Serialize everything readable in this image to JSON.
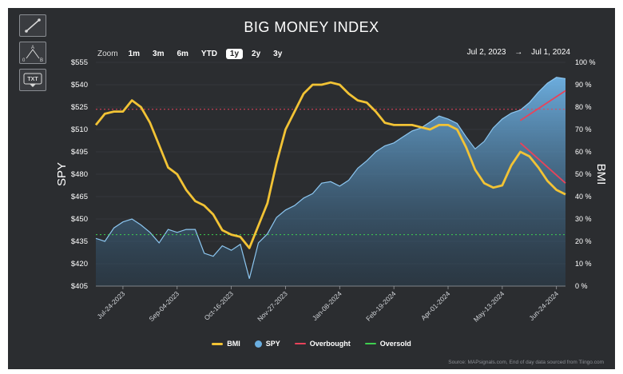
{
  "title": "BIG MONEY INDEX",
  "tools": [
    {
      "name": "trendline-tool-icon"
    },
    {
      "name": "measure-tool-icon",
      "labels": [
        "A",
        "0",
        "B"
      ]
    },
    {
      "name": "text-tool-icon",
      "label": "TXT"
    }
  ],
  "zoom": {
    "label": "Zoom",
    "buttons": [
      "1m",
      "3m",
      "6m",
      "YTD",
      "1y",
      "2y",
      "3y"
    ],
    "active": "1y"
  },
  "range": {
    "from": "Jul 2, 2023",
    "arrow": "→",
    "to": "Jul 1, 2024"
  },
  "legend": [
    {
      "label": "BMI",
      "color": "#f2c335",
      "shape": "line"
    },
    {
      "label": "SPY",
      "color": "#6aaee0",
      "shape": "dot"
    },
    {
      "label": "Overbought",
      "color": "#e8435a",
      "shape": "line"
    },
    {
      "label": "Oversold",
      "color": "#3ecf4f",
      "shape": "line"
    }
  ],
  "source": "Source: MAPsignals.com, End of day data sourced from Tiingo.com",
  "chart_data": {
    "type": "line",
    "title": "BIG MONEY INDEX",
    "x_tick_labels": [
      "Jul-24-2023",
      "Sep-04-2023",
      "Oct-16-2023",
      "Nov-27-2023",
      "Jan-08-2024",
      "Feb-19-2024",
      "Apr-01-2024",
      "May-13-2024",
      "Jun-24-2024"
    ],
    "x_domain": [
      "2023-07-03",
      "2024-07-01"
    ],
    "y_left": {
      "label": "SPY",
      "min": 405,
      "max": 555,
      "ticks": [
        "$405",
        "$420",
        "$435",
        "$450",
        "$465",
        "$480",
        "$495",
        "$510",
        "$525",
        "$540",
        "$555"
      ]
    },
    "y_right": {
      "label": "BMI",
      "min": 0,
      "max": 100,
      "ticks": [
        "0 %",
        "10 %",
        "20 %",
        "30 %",
        "40 %",
        "50 %",
        "60 %",
        "70 %",
        "80 %",
        "90 %",
        "100 %"
      ]
    },
    "grid": true,
    "overbought": 79,
    "oversold": 23,
    "series": [
      {
        "name": "BMI",
        "axis": "right",
        "points": [
          [
            "2023-07-03",
            72
          ],
          [
            "2023-07-10",
            77
          ],
          [
            "2023-07-17",
            78
          ],
          [
            "2023-07-24",
            78
          ],
          [
            "2023-07-31",
            83
          ],
          [
            "2023-08-07",
            80
          ],
          [
            "2023-08-14",
            73
          ],
          [
            "2023-08-21",
            63
          ],
          [
            "2023-08-28",
            53
          ],
          [
            "2023-09-04",
            50
          ],
          [
            "2023-09-11",
            43
          ],
          [
            "2023-09-18",
            38
          ],
          [
            "2023-09-25",
            36
          ],
          [
            "2023-10-02",
            32
          ],
          [
            "2023-10-09",
            25
          ],
          [
            "2023-10-16",
            23
          ],
          [
            "2023-10-23",
            22
          ],
          [
            "2023-10-30",
            17
          ],
          [
            "2023-11-06",
            27
          ],
          [
            "2023-11-13",
            37
          ],
          [
            "2023-11-20",
            55
          ],
          [
            "2023-11-27",
            70
          ],
          [
            "2023-12-04",
            78
          ],
          [
            "2023-12-11",
            86
          ],
          [
            "2023-12-18",
            90
          ],
          [
            "2023-12-25",
            90
          ],
          [
            "2024-01-01",
            91
          ],
          [
            "2024-01-08",
            90
          ],
          [
            "2024-01-15",
            86
          ],
          [
            "2024-01-22",
            83
          ],
          [
            "2024-01-29",
            82
          ],
          [
            "2024-02-05",
            78
          ],
          [
            "2024-02-12",
            73
          ],
          [
            "2024-02-19",
            72
          ],
          [
            "2024-02-26",
            72
          ],
          [
            "2024-03-04",
            72
          ],
          [
            "2024-03-11",
            71
          ],
          [
            "2024-03-18",
            70
          ],
          [
            "2024-03-25",
            72
          ],
          [
            "2024-04-01",
            72
          ],
          [
            "2024-04-08",
            70
          ],
          [
            "2024-04-15",
            62
          ],
          [
            "2024-04-22",
            52
          ],
          [
            "2024-04-29",
            46
          ],
          [
            "2024-05-06",
            44
          ],
          [
            "2024-05-13",
            45
          ],
          [
            "2024-05-20",
            54
          ],
          [
            "2024-05-27",
            60
          ],
          [
            "2024-06-03",
            58
          ],
          [
            "2024-06-10",
            53
          ],
          [
            "2024-06-17",
            47
          ],
          [
            "2024-06-24",
            43
          ],
          [
            "2024-07-01",
            41
          ]
        ]
      },
      {
        "name": "SPY",
        "axis": "left",
        "points": [
          [
            "2023-07-03",
            437
          ],
          [
            "2023-07-10",
            435
          ],
          [
            "2023-07-17",
            444
          ],
          [
            "2023-07-24",
            448
          ],
          [
            "2023-07-31",
            450
          ],
          [
            "2023-08-07",
            446
          ],
          [
            "2023-08-14",
            441
          ],
          [
            "2023-08-21",
            434
          ],
          [
            "2023-08-28",
            443
          ],
          [
            "2023-09-04",
            441
          ],
          [
            "2023-09-11",
            443
          ],
          [
            "2023-09-18",
            443
          ],
          [
            "2023-09-25",
            427
          ],
          [
            "2023-10-02",
            425
          ],
          [
            "2023-10-09",
            432
          ],
          [
            "2023-10-16",
            429
          ],
          [
            "2023-10-23",
            433
          ],
          [
            "2023-10-30",
            410
          ],
          [
            "2023-11-06",
            434
          ],
          [
            "2023-11-13",
            440
          ],
          [
            "2023-11-20",
            451
          ],
          [
            "2023-11-27",
            456
          ],
          [
            "2023-12-04",
            459
          ],
          [
            "2023-12-11",
            464
          ],
          [
            "2023-12-18",
            467
          ],
          [
            "2023-12-25",
            474
          ],
          [
            "2024-01-01",
            475
          ],
          [
            "2024-01-08",
            472
          ],
          [
            "2024-01-15",
            476
          ],
          [
            "2024-01-22",
            484
          ],
          [
            "2024-01-29",
            489
          ],
          [
            "2024-02-05",
            495
          ],
          [
            "2024-02-12",
            499
          ],
          [
            "2024-02-19",
            501
          ],
          [
            "2024-02-26",
            505
          ],
          [
            "2024-03-04",
            509
          ],
          [
            "2024-03-11",
            511
          ],
          [
            "2024-03-18",
            515
          ],
          [
            "2024-03-25",
            519
          ],
          [
            "2024-04-01",
            517
          ],
          [
            "2024-04-08",
            514
          ],
          [
            "2024-04-15",
            505
          ],
          [
            "2024-04-22",
            497
          ],
          [
            "2024-04-29",
            502
          ],
          [
            "2024-05-06",
            511
          ],
          [
            "2024-05-13",
            517
          ],
          [
            "2024-05-20",
            521
          ],
          [
            "2024-05-27",
            523
          ],
          [
            "2024-06-03",
            528
          ],
          [
            "2024-06-10",
            535
          ],
          [
            "2024-06-17",
            541
          ],
          [
            "2024-06-24",
            545
          ],
          [
            "2024-07-01",
            544
          ]
        ]
      }
    ],
    "annotations": [
      {
        "series": "SPY",
        "from": [
          "2024-05-27",
          516
        ],
        "to": [
          "2024-07-01",
          536
        ],
        "color": "#e8435a"
      },
      {
        "series": "BMI",
        "from": [
          "2024-05-27",
          64
        ],
        "to": [
          "2024-07-01",
          46
        ],
        "color": "#e8435a"
      }
    ]
  }
}
